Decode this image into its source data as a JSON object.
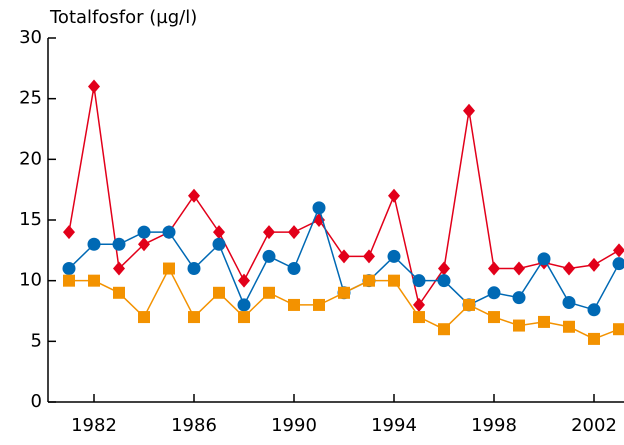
{
  "chart_data": {
    "type": "line",
    "y_label": "Totalfosfor (µg/l)",
    "x": [
      1981,
      1982,
      1983,
      1984,
      1985,
      1986,
      1987,
      1988,
      1989,
      1990,
      1991,
      1992,
      1993,
      1994,
      1995,
      1996,
      1997,
      1998,
      1999,
      2000,
      2001,
      2002,
      2003
    ],
    "series": [
      {
        "color": "#e2001a",
        "marker": "diamond",
        "values": [
          14,
          26,
          11,
          13,
          14,
          17,
          14,
          10,
          14,
          14,
          15,
          12,
          12,
          17,
          8,
          11,
          24,
          11,
          11,
          11.5,
          11,
          11.3,
          12.5
        ]
      },
      {
        "color": "#0069b4",
        "marker": "circle",
        "values": [
          11,
          13,
          13,
          14,
          14,
          11,
          13,
          8,
          12,
          11,
          16,
          9,
          10,
          12,
          10,
          10,
          8,
          9,
          8.6,
          11.8,
          8.2,
          7.6,
          11.4
        ]
      },
      {
        "color": "#f39200",
        "marker": "square",
        "values": [
          10,
          10,
          9,
          7,
          11,
          7,
          9,
          7,
          9,
          8,
          8,
          9,
          10,
          10,
          7,
          6,
          8,
          7,
          6.3,
          6.6,
          6.2,
          5.2,
          6
        ]
      }
    ],
    "xlim": [
      1980.16,
      2003.2
    ],
    "xticks": [
      1982,
      1986,
      1990,
      1994,
      1998,
      2002
    ],
    "ylim": [
      0,
      30
    ],
    "yticks": [
      0,
      5,
      10,
      15,
      20,
      25,
      30
    ]
  }
}
